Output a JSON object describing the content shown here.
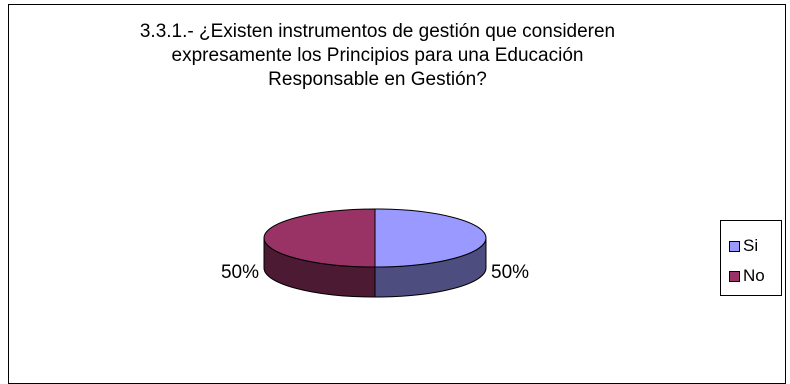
{
  "chart_data": {
    "type": "pie",
    "title_lines": [
      "3.3.1.- ¿Existen instrumentos de gestión que consideren",
      "expresamente los Principios para una Educación",
      "Responsable en Gestión?"
    ],
    "style": "3d-pie",
    "categories": [
      "Si",
      "No"
    ],
    "values": [
      50,
      50
    ],
    "data_labels": [
      "50%",
      "50%"
    ],
    "legend_position": "right",
    "colors": {
      "Si": {
        "top": "#9999FF",
        "side": "#4D4D80"
      },
      "No": {
        "top": "#993366",
        "side": "#4D1A33"
      }
    }
  }
}
